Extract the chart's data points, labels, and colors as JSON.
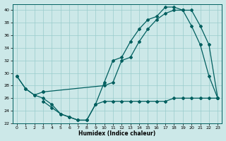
{
  "bg_color": "#cce8e8",
  "line_color": "#005f5f",
  "grid_color": "#99cccc",
  "xlabel": "Humidex (Indice chaleur)",
  "xlim": [
    -0.5,
    23.5
  ],
  "ylim": [
    22,
    41
  ],
  "yticks": [
    22,
    24,
    26,
    28,
    30,
    32,
    34,
    36,
    38,
    40
  ],
  "xticks": [
    0,
    1,
    2,
    3,
    4,
    5,
    6,
    7,
    8,
    9,
    10,
    11,
    12,
    13,
    14,
    15,
    16,
    17,
    18,
    19,
    20,
    21,
    22,
    23
  ],
  "line1_x": [
    0,
    1,
    2,
    3,
    4,
    5,
    6,
    7,
    8,
    9,
    10,
    11,
    12,
    13,
    14,
    15,
    16,
    17,
    18,
    19,
    20,
    21,
    22,
    23
  ],
  "line1_y": [
    29.5,
    27.5,
    26.5,
    26.0,
    25.0,
    23.5,
    23.0,
    22.5,
    22.5,
    25.0,
    28.5,
    32.0,
    32.5,
    35.0,
    37.0,
    38.5,
    39.0,
    40.5,
    40.5,
    40.0,
    37.5,
    34.5,
    29.5,
    26.0
  ],
  "line2_x": [
    0,
    1,
    2,
    3,
    10,
    11,
    12,
    13,
    14,
    15,
    16,
    17,
    18,
    19,
    20,
    21,
    22,
    23
  ],
  "line2_y": [
    29.5,
    27.5,
    26.5,
    27.0,
    28.0,
    28.5,
    32.0,
    32.5,
    35.0,
    37.0,
    38.5,
    39.5,
    40.0,
    40.0,
    40.0,
    37.5,
    34.5,
    26.0
  ],
  "line3_x": [
    3,
    4,
    5,
    6,
    7,
    8,
    9,
    10,
    11,
    12,
    13,
    14,
    15,
    16,
    17,
    18,
    19,
    20,
    21,
    22,
    23
  ],
  "line3_y": [
    25.5,
    24.5,
    23.5,
    23.0,
    22.5,
    22.5,
    25.0,
    25.5,
    25.5,
    25.5,
    25.5,
    25.5,
    25.5,
    25.5,
    25.5,
    26.0,
    26.0,
    26.0,
    26.0,
    26.0,
    26.0
  ]
}
